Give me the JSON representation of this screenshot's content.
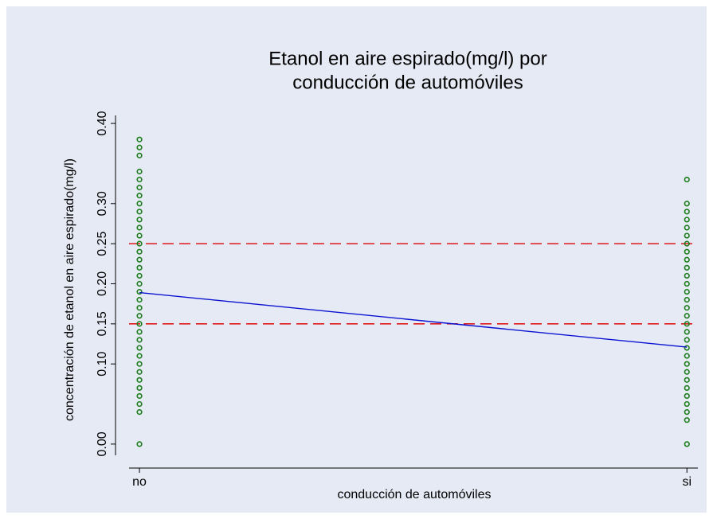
{
  "chart_data": {
    "type": "scatter",
    "title": [
      "Etanol en aire espirado(mg/l) por",
      "conducción de automóviles"
    ],
    "xlabel": "conducción de automóviles",
    "ylabel": "concentración de etanol en aire espirado(mg/l)",
    "xlim": [
      -0.019,
      1.02
    ],
    "xticks": [
      {
        "value": 0,
        "label": "no"
      },
      {
        "value": 1,
        "label": "si"
      }
    ],
    "ylim": [
      -0.014,
      0.41
    ],
    "yticks": [
      {
        "value": 0,
        "label": "0.00"
      },
      {
        "value": 0.1,
        "label": "0.10"
      },
      {
        "value": 0.15,
        "label": "0.15"
      },
      {
        "value": 0.2,
        "label": "0.20"
      },
      {
        "value": 0.25,
        "label": "0.25"
      },
      {
        "value": 0.3,
        "label": "0.30"
      },
      {
        "value": 0.4,
        "label": "0.40"
      }
    ],
    "hlines": [
      0.15,
      0.25
    ],
    "hline_color": "#e0191c",
    "series": [
      {
        "type": "scatter",
        "color": "#1a7d1a",
        "x": [
          0,
          0,
          0,
          0,
          0,
          0,
          0,
          0,
          0,
          0,
          0,
          0,
          0,
          0,
          0,
          0,
          0,
          0,
          0,
          0,
          0,
          0,
          0,
          0,
          0,
          0,
          0,
          0,
          0,
          0,
          0,
          0,
          0,
          0,
          0
        ],
        "values": [
          0,
          0.04,
          0.05,
          0.06,
          0.07,
          0.08,
          0.09,
          0.1,
          0.11,
          0.12,
          0.13,
          0.14,
          0.15,
          0.16,
          0.17,
          0.18,
          0.19,
          0.2,
          0.21,
          0.22,
          0.23,
          0.24,
          0.25,
          0.26,
          0.27,
          0.28,
          0.29,
          0.3,
          0.31,
          0.32,
          0.33,
          0.34,
          0.36,
          0.37,
          0.38
        ]
      },
      {
        "type": "scatter",
        "color": "#1a7d1a",
        "x": [
          1,
          1,
          1,
          1,
          1,
          1,
          1,
          1,
          1,
          1,
          1,
          1,
          1,
          1,
          1,
          1,
          1,
          1,
          1,
          1,
          1,
          1,
          1,
          1,
          1,
          1,
          1,
          1,
          1,
          1
        ],
        "values": [
          0,
          0.03,
          0.04,
          0.05,
          0.06,
          0.07,
          0.08,
          0.09,
          0.1,
          0.11,
          0.12,
          0.13,
          0.14,
          0.15,
          0.16,
          0.17,
          0.18,
          0.19,
          0.2,
          0.21,
          0.22,
          0.23,
          0.24,
          0.25,
          0.26,
          0.27,
          0.28,
          0.29,
          0.3,
          0.33
        ]
      },
      {
        "type": "line",
        "color": "#0a14d2",
        "x": [
          0,
          1
        ],
        "values": [
          0.189,
          0.121
        ]
      }
    ]
  }
}
